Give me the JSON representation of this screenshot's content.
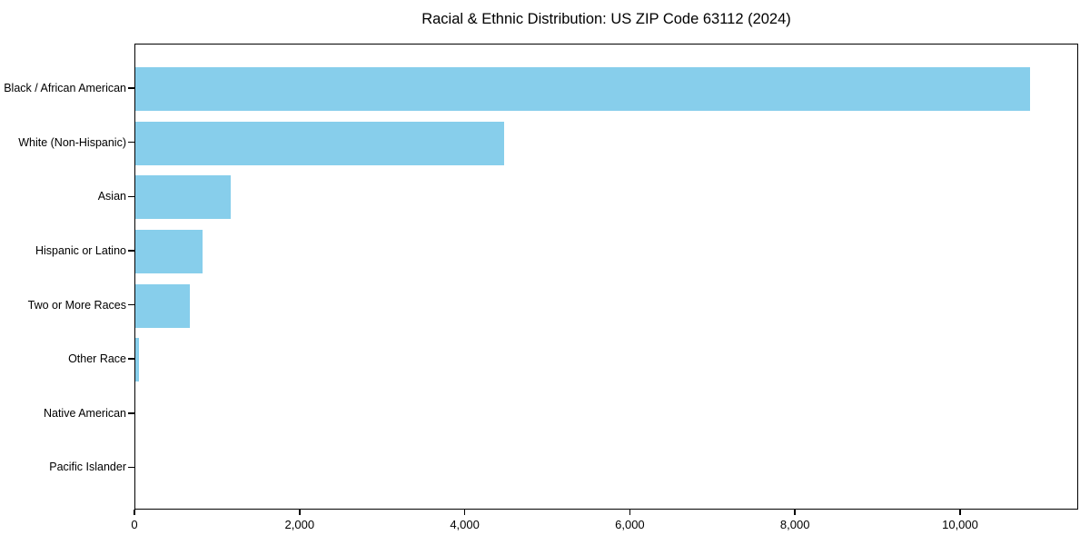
{
  "title": "Racial & Ethnic Distribution: US ZIP Code 63112 (2024)",
  "chart_data": {
    "type": "bar",
    "orientation": "horizontal",
    "title": "Racial & Ethnic Distribution: US ZIP Code 63112 (2024)",
    "xlabel": "",
    "ylabel": "",
    "categories": [
      "Black / African American",
      "White (Non-Hispanic)",
      "Asian",
      "Hispanic or Latino",
      "Two or More Races",
      "Other Race",
      "Native American",
      "Pacific Islander"
    ],
    "values": [
      10860,
      4475,
      1155,
      815,
      660,
      45,
      0,
      0
    ],
    "xlim": [
      0,
      11430
    ],
    "x_ticks": [
      0,
      2000,
      4000,
      6000,
      8000,
      10000
    ],
    "x_tick_labels": [
      "0",
      "2,000",
      "4,000",
      "6,000",
      "8,000",
      "10,000"
    ],
    "grid": false,
    "legend": "none",
    "bar_color": "#87CEEB",
    "background_color": "#FFFFFF",
    "axis_color": "#000000",
    "text_color": "#000000"
  }
}
